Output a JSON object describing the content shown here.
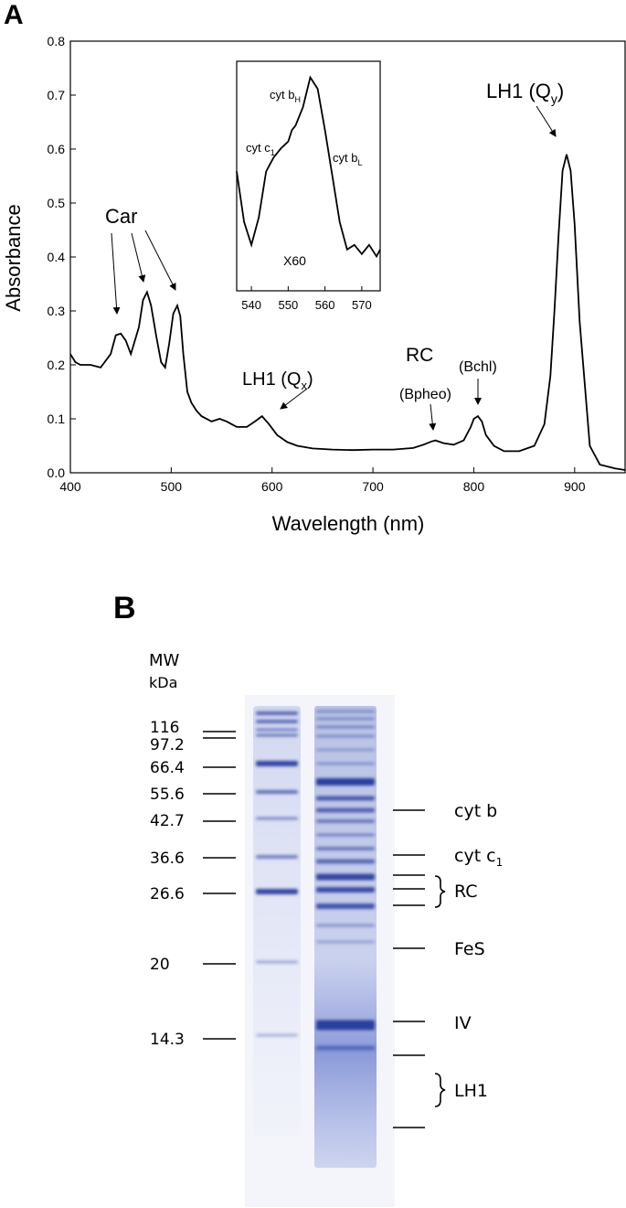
{
  "panel_a": {
    "panel_label": "A",
    "chart_data": {
      "type": "line",
      "xlabel": "Wavelength (nm)",
      "ylabel": "Absorbance",
      "xlim": [
        400,
        950
      ],
      "ylim": [
        0,
        0.8
      ],
      "x_ticks": [
        "400",
        "500",
        "600",
        "700",
        "800",
        "900"
      ],
      "y_ticks": [
        "0.0",
        "0.1",
        "0.2",
        "0.3",
        "0.4",
        "0.5",
        "0.6",
        "0.7",
        "0.8"
      ],
      "series": [
        {
          "x": [
            400,
            405,
            410,
            420,
            430,
            440,
            445,
            450,
            455,
            460,
            468,
            472,
            476,
            480,
            485,
            490,
            494,
            498,
            502,
            506,
            509,
            512,
            516,
            520,
            525,
            530,
            540,
            548,
            555,
            565,
            575,
            583,
            590,
            597,
            605,
            615,
            625,
            640,
            660,
            680,
            700,
            720,
            740,
            750,
            758,
            762,
            770,
            780,
            790,
            797,
            800,
            804,
            808,
            812,
            820,
            830,
            845,
            860,
            870,
            876,
            880,
            884,
            888,
            892,
            896,
            900,
            905,
            915,
            925,
            940,
            950
          ],
          "y": [
            0.22,
            0.205,
            0.2,
            0.2,
            0.195,
            0.22,
            0.255,
            0.258,
            0.245,
            0.22,
            0.27,
            0.32,
            0.335,
            0.31,
            0.255,
            0.205,
            0.195,
            0.24,
            0.295,
            0.31,
            0.29,
            0.22,
            0.15,
            0.13,
            0.115,
            0.105,
            0.095,
            0.1,
            0.095,
            0.085,
            0.085,
            0.095,
            0.105,
            0.09,
            0.07,
            0.057,
            0.05,
            0.045,
            0.043,
            0.042,
            0.043,
            0.043,
            0.046,
            0.052,
            0.058,
            0.06,
            0.055,
            0.052,
            0.06,
            0.085,
            0.1,
            0.105,
            0.095,
            0.07,
            0.05,
            0.04,
            0.04,
            0.05,
            0.09,
            0.18,
            0.3,
            0.44,
            0.56,
            0.59,
            0.56,
            0.46,
            0.28,
            0.05,
            0.015,
            0.008,
            0.005
          ]
        }
      ],
      "annotations": {
        "car": "Car",
        "lh1_qx": "LH1 (Q",
        "lh1_qx_sub": "x",
        "lh1_qx_close": ")",
        "rc": "RC",
        "bpheo": "(Bpheo)",
        "bchl": "(Bchl)",
        "lh1_qy": "LH1 (Q",
        "lh1_qy_sub": "y",
        "lh1_qy_close": ")"
      },
      "inset": {
        "xlim": [
          536,
          575
        ],
        "x_ticks": [
          "540",
          "550",
          "560",
          "570"
        ],
        "scale_label": "X60",
        "labels": {
          "cyt_bh": "cyt b",
          "cyt_bh_sub": "H",
          "cyt_c1": "cyt c",
          "cyt_c1_sub": "1",
          "cyt_bl": "cyt b",
          "cyt_bl_sub": "L"
        },
        "x": [
          536,
          538,
          540,
          542,
          544,
          546,
          548,
          550,
          551,
          552,
          554,
          556,
          558,
          560,
          562,
          564,
          566,
          568,
          570,
          572,
          574,
          575
        ],
        "y": [
          0.52,
          0.3,
          0.2,
          0.32,
          0.52,
          0.58,
          0.62,
          0.65,
          0.7,
          0.72,
          0.8,
          0.93,
          0.88,
          0.7,
          0.5,
          0.3,
          0.18,
          0.2,
          0.16,
          0.2,
          0.15,
          0.18
        ]
      }
    }
  },
  "panel_b": {
    "panel_label": "B",
    "mw_header": "MW",
    "mw_unit": "kDa",
    "markers": [
      {
        "label": "116"
      },
      {
        "label": "97.2"
      },
      {
        "label": "66.4"
      },
      {
        "label": "55.6"
      },
      {
        "label": "42.7"
      },
      {
        "label": "36.6"
      },
      {
        "label": "26.6"
      },
      {
        "label": "20"
      },
      {
        "label": "14.3"
      }
    ],
    "bands": {
      "cyt_b": "cyt b",
      "cyt_c1": "cyt c",
      "cyt_c1_sub": "1",
      "rc": "RC",
      "fes": "FeS",
      "iv": "IV",
      "lh1": "LH1"
    },
    "colors": {
      "gel_blue": "#2b3f9e",
      "gel_light": "#c7cfee"
    }
  }
}
